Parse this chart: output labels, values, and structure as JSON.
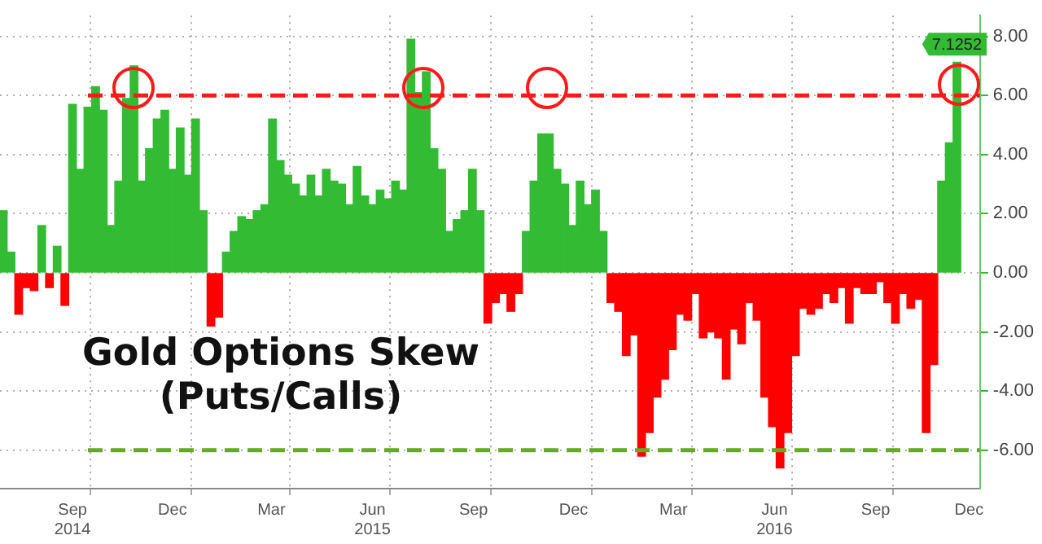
{
  "chart_data": {
    "type": "bar",
    "title": "Gold Options Skew",
    "subtitle": "(Puts/Calls)",
    "x": [
      "2014-07-14",
      "2014-07-21",
      "2014-07-28",
      "2014-08-04",
      "2014-08-11",
      "2014-08-18",
      "2014-08-25",
      "2014-09-01",
      "2014-09-08",
      "2014-09-15",
      "2014-09-22",
      "2014-09-29",
      "2014-10-06",
      "2014-10-13",
      "2014-10-20",
      "2014-10-27",
      "2014-11-03",
      "2014-11-10",
      "2014-11-17",
      "2014-11-24",
      "2014-12-01",
      "2014-12-08",
      "2014-12-15",
      "2014-12-22",
      "2014-12-29",
      "2015-01-05",
      "2015-01-12",
      "2015-01-19",
      "2015-01-26",
      "2015-02-02",
      "2015-02-09",
      "2015-02-16",
      "2015-02-23",
      "2015-03-02",
      "2015-03-09",
      "2015-03-16",
      "2015-03-23",
      "2015-03-30",
      "2015-04-06",
      "2015-04-13",
      "2015-04-20",
      "2015-04-27",
      "2015-05-04",
      "2015-05-11",
      "2015-05-18",
      "2015-05-25",
      "2015-06-01",
      "2015-06-08",
      "2015-06-15",
      "2015-06-22",
      "2015-06-29",
      "2015-07-06",
      "2015-07-13",
      "2015-07-20",
      "2015-07-27",
      "2015-08-03",
      "2015-08-10",
      "2015-08-17",
      "2015-08-24",
      "2015-08-31",
      "2015-09-07",
      "2015-09-14",
      "2015-09-21",
      "2015-09-28",
      "2015-10-05",
      "2015-10-12",
      "2015-10-19",
      "2015-10-26",
      "2015-11-02",
      "2015-11-09",
      "2015-11-16",
      "2015-11-23",
      "2015-11-30",
      "2015-12-07",
      "2015-12-14",
      "2015-12-21",
      "2015-12-28",
      "2016-01-04",
      "2016-01-11",
      "2016-01-18",
      "2016-01-25",
      "2016-02-01",
      "2016-02-08",
      "2016-02-15",
      "2016-02-22",
      "2016-02-29",
      "2016-03-07",
      "2016-03-14",
      "2016-03-21",
      "2016-03-28",
      "2016-04-04",
      "2016-04-11",
      "2016-04-18",
      "2016-04-25",
      "2016-05-02",
      "2016-05-09",
      "2016-05-16",
      "2016-05-23",
      "2016-05-30",
      "2016-06-06",
      "2016-06-13",
      "2016-06-20",
      "2016-06-27",
      "2016-07-04",
      "2016-07-11",
      "2016-07-18",
      "2016-07-25",
      "2016-08-01",
      "2016-08-08",
      "2016-08-15",
      "2016-08-22",
      "2016-08-29",
      "2016-09-05",
      "2016-09-12",
      "2016-09-19",
      "2016-09-26",
      "2016-10-03",
      "2016-10-10",
      "2016-10-17",
      "2016-10-24",
      "2016-10-31",
      "2016-11-07",
      "2016-11-14",
      "2016-11-21",
      "2016-11-28"
    ],
    "values": [
      2.1,
      0.7,
      -1.4,
      -0.5,
      -0.6,
      1.6,
      -0.5,
      0.9,
      -1.1,
      5.7,
      3.5,
      5.6,
      6.3,
      5.5,
      1.6,
      3.1,
      5.9,
      7.0,
      3.1,
      4.2,
      5.2,
      5.5,
      3.5,
      4.9,
      3.3,
      5.2,
      2.1,
      -1.8,
      -1.5,
      0.7,
      1.4,
      1.9,
      1.8,
      2.1,
      2.3,
      5.2,
      3.8,
      3.3,
      3.0,
      2.6,
      3.3,
      2.6,
      3.5,
      3.1,
      3.0,
      2.3,
      3.6,
      2.6,
      2.3,
      2.8,
      2.5,
      3.1,
      2.8,
      7.9,
      6.1,
      6.8,
      4.2,
      3.5,
      1.4,
      1.8,
      2.1,
      3.5,
      2.1,
      -1.7,
      -1.0,
      -0.7,
      -1.3,
      -0.7,
      1.4,
      3.1,
      4.7,
      4.7,
      3.5,
      3.0,
      1.6,
      3.1,
      2.3,
      2.8,
      1.4,
      -1.0,
      -1.3,
      -2.8,
      -2.1,
      -6.2,
      -5.4,
      -4.2,
      -3.6,
      -2.6,
      -1.4,
      -1.6,
      -0.7,
      -2.2,
      -2.0,
      -2.2,
      -3.6,
      -1.9,
      -2.4,
      -1.0,
      -1.6,
      -4.2,
      -5.2,
      -6.6,
      -5.4,
      -2.8,
      -1.2,
      -1.4,
      -1.2,
      -0.7,
      -1.0,
      -0.5,
      -1.7,
      -0.5,
      -0.7,
      -0.7,
      -0.3,
      -1.0,
      -1.7,
      -0.7,
      -1.2,
      -0.9,
      -5.4,
      -3.1,
      3.1,
      4.4,
      7.1252
    ],
    "colors": [
      "#33bb33",
      "#33bb33",
      "#ff0000",
      "#ff0000",
      "#ff0000",
      "#33bb33",
      "#ff0000",
      "#33bb33",
      "#ff0000",
      "#33bb33",
      "#33bb33",
      "#33bb33",
      "#33bb33",
      "#33bb33",
      "#33bb33",
      "#33bb33",
      "#33bb33",
      "#33bb33",
      "#33bb33",
      "#33bb33",
      "#33bb33",
      "#33bb33",
      "#33bb33",
      "#33bb33",
      "#33bb33",
      "#33bb33",
      "#33bb33",
      "#ff0000",
      "#ff0000",
      "#33bb33",
      "#33bb33",
      "#33bb33",
      "#33bb33",
      "#33bb33",
      "#33bb33",
      "#33bb33",
      "#33bb33",
      "#33bb33",
      "#33bb33",
      "#33bb33",
      "#33bb33",
      "#33bb33",
      "#33bb33",
      "#33bb33",
      "#33bb33",
      "#33bb33",
      "#33bb33",
      "#33bb33",
      "#33bb33",
      "#33bb33",
      "#33bb33",
      "#33bb33",
      "#33bb33",
      "#33bb33",
      "#33bb33",
      "#33bb33",
      "#33bb33",
      "#33bb33",
      "#33bb33",
      "#33bb33",
      "#33bb33",
      "#33bb33",
      "#33bb33",
      "#ff0000",
      "#ff0000",
      "#ff0000",
      "#ff0000",
      "#ff0000",
      "#33bb33",
      "#33bb33",
      "#33bb33",
      "#33bb33",
      "#33bb33",
      "#33bb33",
      "#33bb33",
      "#33bb33",
      "#33bb33",
      "#33bb33",
      "#33bb33",
      "#ff0000",
      "#ff0000",
      "#ff0000",
      "#ff0000",
      "#ff0000",
      "#ff0000",
      "#ff0000",
      "#ff0000",
      "#ff0000",
      "#ff0000",
      "#ff0000",
      "#ff0000",
      "#ff0000",
      "#ff0000",
      "#ff0000",
      "#ff0000",
      "#ff0000",
      "#ff0000",
      "#ff0000",
      "#ff0000",
      "#ff0000",
      "#ff0000",
      "#ff0000",
      "#ff0000",
      "#ff0000",
      "#ff0000",
      "#ff0000",
      "#ff0000",
      "#ff0000",
      "#ff0000",
      "#ff0000",
      "#ff0000",
      "#ff0000",
      "#ff0000",
      "#ff0000",
      "#ff0000",
      "#ff0000",
      "#ff0000",
      "#ff0000",
      "#ff0000",
      "#ff0000",
      "#ff0000",
      "#ff0000",
      "#33bb33",
      "#33bb33",
      "#33bb33"
    ],
    "value_labels": [
      null,
      null,
      null,
      null,
      null,
      null,
      null,
      null,
      null,
      null,
      null,
      null,
      null,
      null,
      null,
      null,
      null,
      null,
      null,
      null,
      null,
      null,
      null,
      null,
      null,
      null,
      null,
      null,
      null,
      null,
      null,
      null,
      null,
      null,
      null,
      null,
      null,
      null,
      null,
      null,
      null,
      null,
      null,
      null,
      null,
      null,
      null,
      null,
      null,
      null,
      null,
      null,
      null,
      null,
      null,
      null,
      null,
      null,
      null,
      null,
      null,
      null,
      null,
      null,
      null,
      null,
      null,
      null,
      null,
      null,
      null,
      null,
      null,
      null,
      null,
      null,
      null,
      null,
      null,
      null,
      null,
      null,
      null,
      null,
      null,
      null,
      null,
      null,
      null,
      null,
      null,
      null,
      null,
      null,
      null,
      null,
      null,
      null,
      null,
      null,
      null,
      null,
      null,
      null,
      null,
      null,
      null,
      null,
      null,
      null,
      null,
      null,
      null,
      null,
      null,
      null,
      null,
      null,
      null,
      null,
      null,
      null,
      null,
      null,
      "7.1252"
    ],
    "xlim": [
      "2014-07-11",
      "2016-12-19"
    ],
    "xticks": [
      {
        "value": "2014-09-15",
        "label": "Sep\n2014"
      },
      {
        "value": "2014-10-01",
        "label": null
      },
      {
        "value": "2014-12-15",
        "label": "Dec"
      },
      {
        "value": "2015-01-01",
        "label": null
      },
      {
        "value": "2015-03-15",
        "label": "Mar"
      },
      {
        "value": "2015-04-01",
        "label": null
      },
      {
        "value": "2015-06-15",
        "label": "Jun\n2015"
      },
      {
        "value": "2015-07-01",
        "label": null
      },
      {
        "value": "2015-09-15",
        "label": "Sep"
      },
      {
        "value": "2015-10-01",
        "label": null
      },
      {
        "value": "2015-12-15",
        "label": "Dec"
      },
      {
        "value": "2016-01-01",
        "label": null
      },
      {
        "value": "2016-03-15",
        "label": "Mar"
      },
      {
        "value": "2016-04-01",
        "label": null
      },
      {
        "value": "2016-06-15",
        "label": "Jun\n2016"
      },
      {
        "value": "2016-07-01",
        "label": null
      },
      {
        "value": "2016-09-15",
        "label": "Sep"
      },
      {
        "value": "2016-10-01",
        "label": null
      },
      {
        "value": "2016-12-09",
        "label": "Dec"
      }
    ],
    "ylim": [
      -7.3,
      8.7
    ],
    "yticks": [
      {
        "value": -6,
        "label": "-6.00"
      },
      {
        "value": -4,
        "label": "-4.00"
      },
      {
        "value": -2,
        "label": "-2.00"
      },
      {
        "value": 0,
        "label": "0.00"
      },
      {
        "value": 2,
        "label": "2.00"
      },
      {
        "value": 4,
        "label": "4.00"
      },
      {
        "value": 6,
        "label": "6.00"
      },
      {
        "value": 8,
        "label": "8.00"
      }
    ],
    "ref_lines": [
      {
        "axis": "y",
        "value": 6,
        "color": "#ff1a1a",
        "line_style": "dashed"
      },
      {
        "axis": "y",
        "value": -6,
        "color": "#66aa22",
        "line_style": "dashed"
      }
    ],
    "grid": true
  }
}
